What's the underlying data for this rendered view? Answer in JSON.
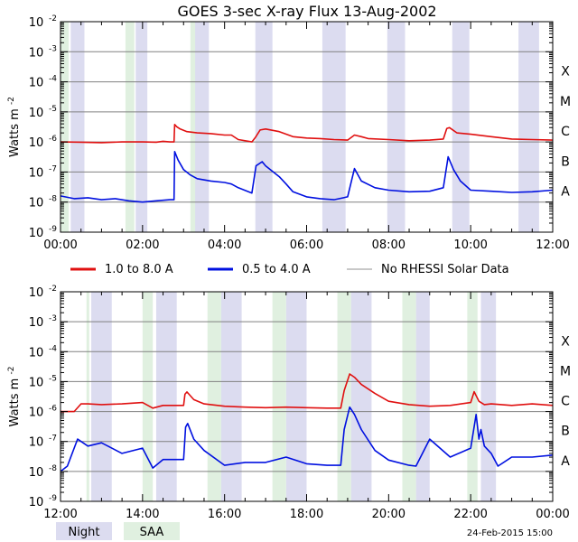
{
  "title": "GOES 3-sec X-ray Flux   13-Aug-2002",
  "stamp": "24-Feb-2015 15:00",
  "colors": {
    "long": "#e01010",
    "short": "#0010e0",
    "nodata": "#909090",
    "night": "#dcdcf0",
    "saa": "#e0f0e0",
    "grid": "#808080"
  },
  "legend": {
    "series": [
      {
        "label": "1.0 to 8.0 A",
        "color": "#e01010",
        "weight": "thick"
      },
      {
        "label": "0.5 to 4.0 A",
        "color": "#0010e0",
        "weight": "thick"
      },
      {
        "label": "No RHESSI Solar Data",
        "color": "#909090",
        "weight": "thin"
      }
    ],
    "bands": [
      {
        "label": "Night",
        "color": "#dcdcf0"
      },
      {
        "label": "SAA",
        "color": "#e0f0e0"
      }
    ]
  },
  "chart_data": [
    {
      "type": "line",
      "ylabel": "Watts m",
      "ylabel_exp": "-2",
      "yscale": "log",
      "ylim": [
        1e-09,
        0.01
      ],
      "xlim": [
        "00:00",
        "12:00"
      ],
      "xticks": [
        "00:00",
        "02:00",
        "04:00",
        "06:00",
        "08:00",
        "10:00",
        "12:00"
      ],
      "yticks": [
        {
          "base": "10",
          "exp": "-9"
        },
        {
          "base": "10",
          "exp": "-8"
        },
        {
          "base": "10",
          "exp": "-7"
        },
        {
          "base": "10",
          "exp": "-6"
        },
        {
          "base": "10",
          "exp": "-5"
        },
        {
          "base": "10",
          "exp": "-4"
        },
        {
          "base": "10",
          "exp": "-3"
        },
        {
          "base": "10",
          "exp": "-2"
        }
      ],
      "flare_classes": [
        "A",
        "B",
        "C",
        "M",
        "X"
      ],
      "night_intervals": [
        [
          "00:15",
          "00:35"
        ],
        [
          "01:50",
          "02:07"
        ],
        [
          "03:15",
          "03:37"
        ],
        [
          "04:45",
          "05:10"
        ],
        [
          "06:23",
          "06:57"
        ],
        [
          "07:58",
          "08:24"
        ],
        [
          "09:33",
          "09:58"
        ],
        [
          "11:10",
          "11:40"
        ]
      ],
      "saa_intervals": [
        [
          "00:00",
          "00:12"
        ],
        [
          "01:35",
          "01:48"
        ],
        [
          "03:10",
          "03:17"
        ]
      ],
      "series": [
        {
          "name": "1.0 to 8.0 A",
          "x": [
            "00:00",
            "00:30",
            "01:00",
            "01:30",
            "02:00",
            "02:20",
            "02:30",
            "02:40",
            "02:46",
            "02:47",
            "02:50",
            "02:55",
            "03:05",
            "03:20",
            "03:40",
            "04:00",
            "04:10",
            "04:20",
            "04:40",
            "04:45",
            "04:52",
            "05:00",
            "05:20",
            "05:40",
            "06:00",
            "06:20",
            "06:40",
            "07:00",
            "07:10",
            "07:20",
            "07:30",
            "08:00",
            "08:30",
            "09:00",
            "09:20",
            "09:25",
            "09:29",
            "09:40",
            "10:00",
            "10:30",
            "11:00",
            "11:30",
            "12:00"
          ],
          "y": [
            1e-06,
            9.8e-07,
            9.5e-07,
            1e-06,
            1e-06,
            9.8e-07,
            1.05e-06,
            1e-06,
            1e-06,
            3.8e-06,
            3.2e-06,
            2.7e-06,
            2.2e-06,
            2e-06,
            1.9e-06,
            1.7e-06,
            1.7e-06,
            1.2e-06,
            1e-06,
            1.4e-06,
            2.5e-06,
            2.7e-06,
            2.2e-06,
            1.5e-06,
            1.35e-06,
            1.3e-06,
            1.2e-06,
            1.15e-06,
            1.7e-06,
            1.5e-06,
            1.3e-06,
            1.2e-06,
            1.1e-06,
            1.15e-06,
            1.25e-06,
            2.8e-06,
            3e-06,
            2e-06,
            1.8e-06,
            1.5e-06,
            1.25e-06,
            1.2e-06,
            1.15e-06
          ]
        },
        {
          "name": "0.5 to 4.0 A",
          "x": [
            "00:00",
            "00:20",
            "00:40",
            "01:00",
            "01:20",
            "01:40",
            "02:00",
            "02:20",
            "02:40",
            "02:46",
            "02:47",
            "02:52",
            "03:00",
            "03:10",
            "03:20",
            "03:40",
            "04:00",
            "04:10",
            "04:20",
            "04:40",
            "04:46",
            "04:55",
            "05:00",
            "05:20",
            "05:30",
            "05:40",
            "06:00",
            "06:20",
            "06:40",
            "07:00",
            "07:10",
            "07:20",
            "07:40",
            "08:00",
            "08:30",
            "09:00",
            "09:20",
            "09:27",
            "09:35",
            "09:45",
            "10:00",
            "10:30",
            "11:00",
            "11:30",
            "12:00"
          ],
          "y": [
            1.6e-08,
            1.3e-08,
            1.4e-08,
            1.2e-08,
            1.3e-08,
            1.1e-08,
            1e-08,
            1.1e-08,
            1.2e-08,
            1.2e-08,
            4.8e-07,
            2.5e-07,
            1.2e-07,
            8e-08,
            6e-08,
            5e-08,
            4.5e-08,
            4e-08,
            3e-08,
            2e-08,
            1.6e-07,
            2.2e-07,
            1.6e-07,
            7e-08,
            4e-08,
            2.2e-08,
            1.5e-08,
            1.3e-08,
            1.2e-08,
            1.5e-08,
            1.3e-07,
            5e-08,
            3e-08,
            2.5e-08,
            2.2e-08,
            2.3e-08,
            3e-08,
            3.2e-07,
            1.2e-07,
            5e-08,
            2.5e-08,
            2.3e-08,
            2.1e-08,
            2.2e-08,
            2.5e-08
          ]
        }
      ]
    },
    {
      "type": "line",
      "ylabel": "Watts m",
      "ylabel_exp": "-2",
      "yscale": "log",
      "ylim": [
        1e-09,
        0.01
      ],
      "xlim": [
        "12:00",
        "00:00"
      ],
      "xticks": [
        "12:00",
        "14:00",
        "16:00",
        "18:00",
        "20:00",
        "22:00",
        "00:00"
      ],
      "yticks": [
        {
          "base": "10",
          "exp": "-9"
        },
        {
          "base": "10",
          "exp": "-8"
        },
        {
          "base": "10",
          "exp": "-7"
        },
        {
          "base": "10",
          "exp": "-6"
        },
        {
          "base": "10",
          "exp": "-5"
        },
        {
          "base": "10",
          "exp": "-4"
        },
        {
          "base": "10",
          "exp": "-3"
        },
        {
          "base": "10",
          "exp": "-2"
        }
      ],
      "flare_classes": [
        "A",
        "B",
        "C",
        "M",
        "X"
      ],
      "night_intervals": [
        [
          "12:45",
          "13:15"
        ],
        [
          "14:20",
          "14:50"
        ],
        [
          "15:55",
          "16:25"
        ],
        [
          "17:30",
          "18:00"
        ],
        [
          "19:05",
          "19:35"
        ],
        [
          "20:40",
          "21:00"
        ],
        [
          "22:15",
          "22:37"
        ]
      ],
      "saa_intervals": [
        [
          "12:38",
          "12:42"
        ],
        [
          "14:00",
          "14:15"
        ],
        [
          "15:35",
          "15:55"
        ],
        [
          "17:10",
          "17:30"
        ],
        [
          "18:45",
          "19:05"
        ],
        [
          "20:20",
          "20:40"
        ],
        [
          "21:55",
          "22:10"
        ]
      ],
      "series": [
        {
          "name": "1.0 to 8.0 A",
          "x": [
            "12:00",
            "12:20",
            "12:30",
            "12:40",
            "13:00",
            "13:30",
            "14:00",
            "14:15",
            "14:30",
            "15:00",
            "15:02",
            "15:05",
            "15:15",
            "15:30",
            "16:00",
            "16:30",
            "17:00",
            "17:30",
            "18:00",
            "18:30",
            "18:50",
            "18:55",
            "19:03",
            "19:10",
            "19:20",
            "19:40",
            "20:00",
            "20:30",
            "21:00",
            "21:30",
            "22:00",
            "22:05",
            "22:12",
            "22:15",
            "22:20",
            "22:30",
            "23:00",
            "23:30",
            "00:00"
          ],
          "y": [
            1e-06,
            1e-06,
            1.8e-06,
            1.8e-06,
            1.7e-06,
            1.8e-06,
            2e-06,
            1.3e-06,
            1.6e-06,
            1.6e-06,
            3.8e-06,
            4.5e-06,
            2.5e-06,
            1.8e-06,
            1.5e-06,
            1.4e-06,
            1.35e-06,
            1.4e-06,
            1.35e-06,
            1.3e-06,
            1.3e-06,
            5e-06,
            1.8e-05,
            1.4e-05,
            8e-06,
            4e-06,
            2.2e-06,
            1.7e-06,
            1.5e-06,
            1.6e-06,
            2e-06,
            4.6e-06,
            2.2e-06,
            2e-06,
            1.7e-06,
            1.8e-06,
            1.6e-06,
            1.8e-06,
            1.6e-06
          ]
        },
        {
          "name": "0.5 to 4.0 A",
          "x": [
            "12:00",
            "12:10",
            "12:25",
            "12:40",
            "13:00",
            "13:30",
            "14:00",
            "14:15",
            "14:30",
            "15:00",
            "15:03",
            "15:06",
            "15:15",
            "15:30",
            "16:00",
            "16:30",
            "17:00",
            "17:30",
            "18:00",
            "18:30",
            "18:50",
            "18:55",
            "19:03",
            "19:10",
            "19:20",
            "19:40",
            "20:00",
            "20:30",
            "20:40",
            "21:00",
            "21:30",
            "22:00",
            "22:08",
            "22:12",
            "22:15",
            "22:20",
            "22:30",
            "22:40",
            "23:00",
            "23:30",
            "00:00"
          ],
          "y": [
            1e-08,
            1.5e-08,
            1.2e-07,
            7e-08,
            9e-08,
            4e-08,
            6e-08,
            1.3e-08,
            2.5e-08,
            2.5e-08,
            3e-07,
            4e-07,
            1.2e-07,
            5e-08,
            1.6e-08,
            2e-08,
            2e-08,
            3e-08,
            1.8e-08,
            1.6e-08,
            1.6e-08,
            2.5e-07,
            1.4e-06,
            8e-07,
            2.5e-07,
            5e-08,
            2.4e-08,
            1.6e-08,
            1.5e-08,
            1.2e-07,
            3e-08,
            6e-08,
            8e-07,
            1.2e-07,
            2.5e-07,
            7e-08,
            4e-08,
            1.5e-08,
            3e-08,
            3e-08,
            3.5e-08
          ]
        }
      ]
    }
  ]
}
